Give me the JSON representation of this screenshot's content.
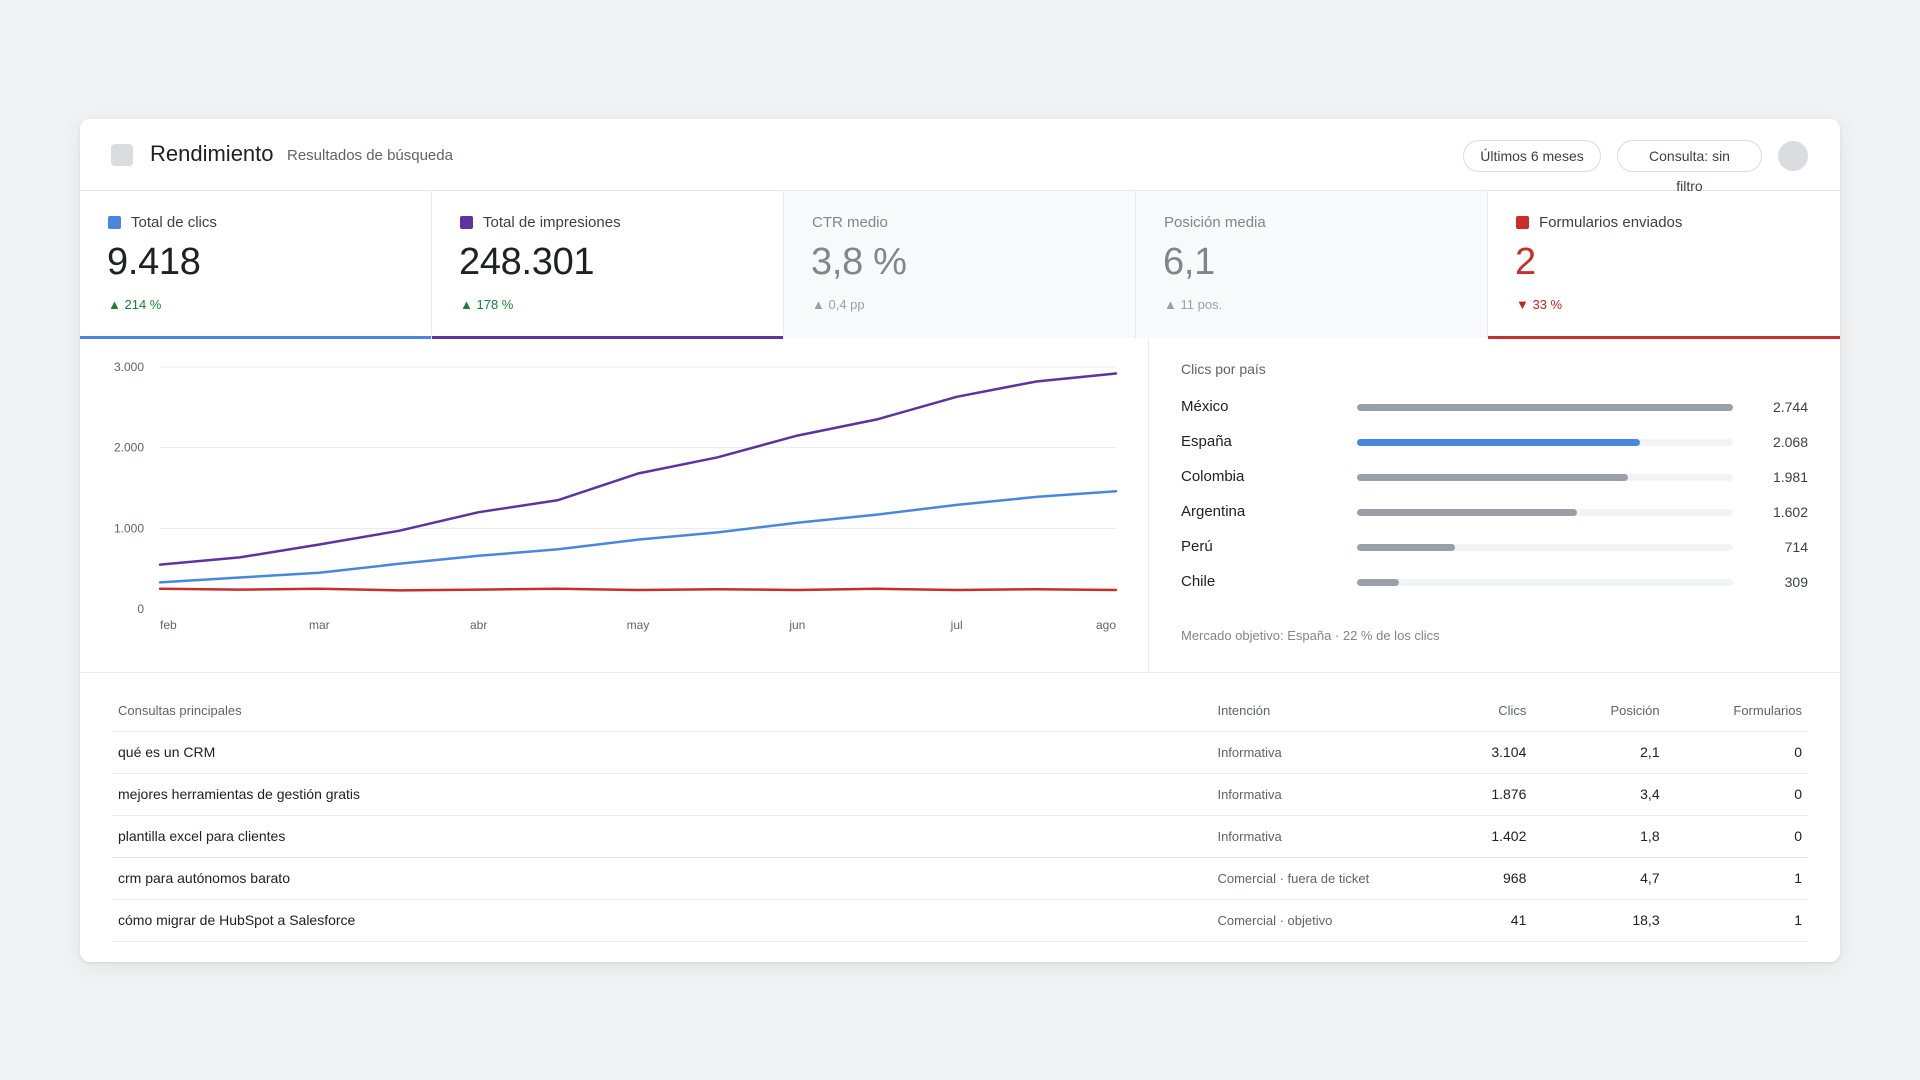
{
  "header": {
    "title": "Rendimiento",
    "subtitle": "Resultados de búsqueda",
    "range_label": "Últimos 6 meses",
    "query_label": "Consulta: sin filtro"
  },
  "metrics": [
    {
      "label": "Total de clics",
      "value": "9.418",
      "delta": "▲ 214 %",
      "color": "#4a86e0",
      "active": true,
      "trend": "up"
    },
    {
      "label": "Total de impresiones",
      "value": "248.301",
      "delta": "▲ 178 %",
      "color": "#5b34a0",
      "active": true,
      "trend": "up"
    },
    {
      "label": "CTR medio",
      "value": "3,8 %",
      "delta": "▲ 0,4 pp",
      "active": false,
      "trend": "neutral"
    },
    {
      "label": "Posición media",
      "value": "6,1",
      "delta": "▲ 11 pos.",
      "active": false,
      "trend": "neutral"
    },
    {
      "label": "Formularios enviados",
      "value": "2",
      "delta": "▼ 33 %",
      "color": "#c62f2a",
      "active": true,
      "trend": "down"
    }
  ],
  "chart_data": {
    "type": "line",
    "x": [
      "feb",
      "",
      "mar",
      "",
      "abr",
      "",
      "may",
      "",
      "jun",
      "",
      "jul",
      "",
      "ago"
    ],
    "xticks": [
      "feb",
      "mar",
      "abr",
      "may",
      "jun",
      "jul",
      "ago"
    ],
    "yticks": [
      "0",
      "1.000",
      "2.000",
      "3.000"
    ],
    "ylim": [
      0,
      3000
    ],
    "grid": true,
    "series": [
      {
        "color": "#5b34a0",
        "values": [
          550,
          640,
          800,
          970,
          1200,
          1350,
          1680,
          1880,
          2150,
          2350,
          2630,
          2820,
          2920
        ]
      },
      {
        "color": "#4a86e0",
        "values": [
          330,
          390,
          450,
          560,
          660,
          740,
          860,
          950,
          1070,
          1170,
          1290,
          1390,
          1460
        ]
      },
      {
        "color": "#c62f2a",
        "values": [
          250,
          240,
          250,
          230,
          240,
          250,
          235,
          245,
          235,
          250,
          235,
          245,
          235
        ]
      }
    ]
  },
  "countries": {
    "title": "Clics por país",
    "max": 2744,
    "items": [
      {
        "name": "México",
        "value": 2744,
        "display": "2.744",
        "color": "#9aa0a6"
      },
      {
        "name": "España",
        "value": 2068,
        "display": "2.068",
        "color": "#4a86e0"
      },
      {
        "name": "Colombia",
        "value": 1981,
        "display": "1.981",
        "color": "#9aa0a6"
      },
      {
        "name": "Argentina",
        "value": 1602,
        "display": "1.602",
        "color": "#9aa0a6"
      },
      {
        "name": "Perú",
        "value": 714,
        "display": "714",
        "color": "#9aa0a6"
      },
      {
        "name": "Chile",
        "value": 309,
        "display": "309",
        "color": "#9aa0a6"
      }
    ],
    "footer": "Mercado objetivo: España · 22 % de los clics"
  },
  "table": {
    "headers": [
      "Consultas principales",
      "Intención",
      "Clics",
      "Posición",
      "Formularios"
    ],
    "rows": [
      {
        "query": "qué es un CRM",
        "intent": "Informativa",
        "clicks": "3.104",
        "position": "2,1",
        "forms": "0"
      },
      {
        "query": "mejores herramientas de gestión gratis",
        "intent": "Informativa",
        "clicks": "1.876",
        "position": "3,4",
        "forms": "0"
      },
      {
        "query": "plantilla excel para clientes",
        "intent": "Informativa",
        "clicks": "1.402",
        "position": "1,8",
        "forms": "0"
      },
      {
        "query": "crm para autónomos barato",
        "intent": "Comercial · fuera de ticket",
        "clicks": "968",
        "position": "4,7",
        "forms": "1"
      },
      {
        "query": "cómo migrar de HubSpot a Salesforce",
        "intent": "Comercial · objetivo",
        "clicks": "41",
        "position": "18,3",
        "forms": "1"
      }
    ]
  }
}
